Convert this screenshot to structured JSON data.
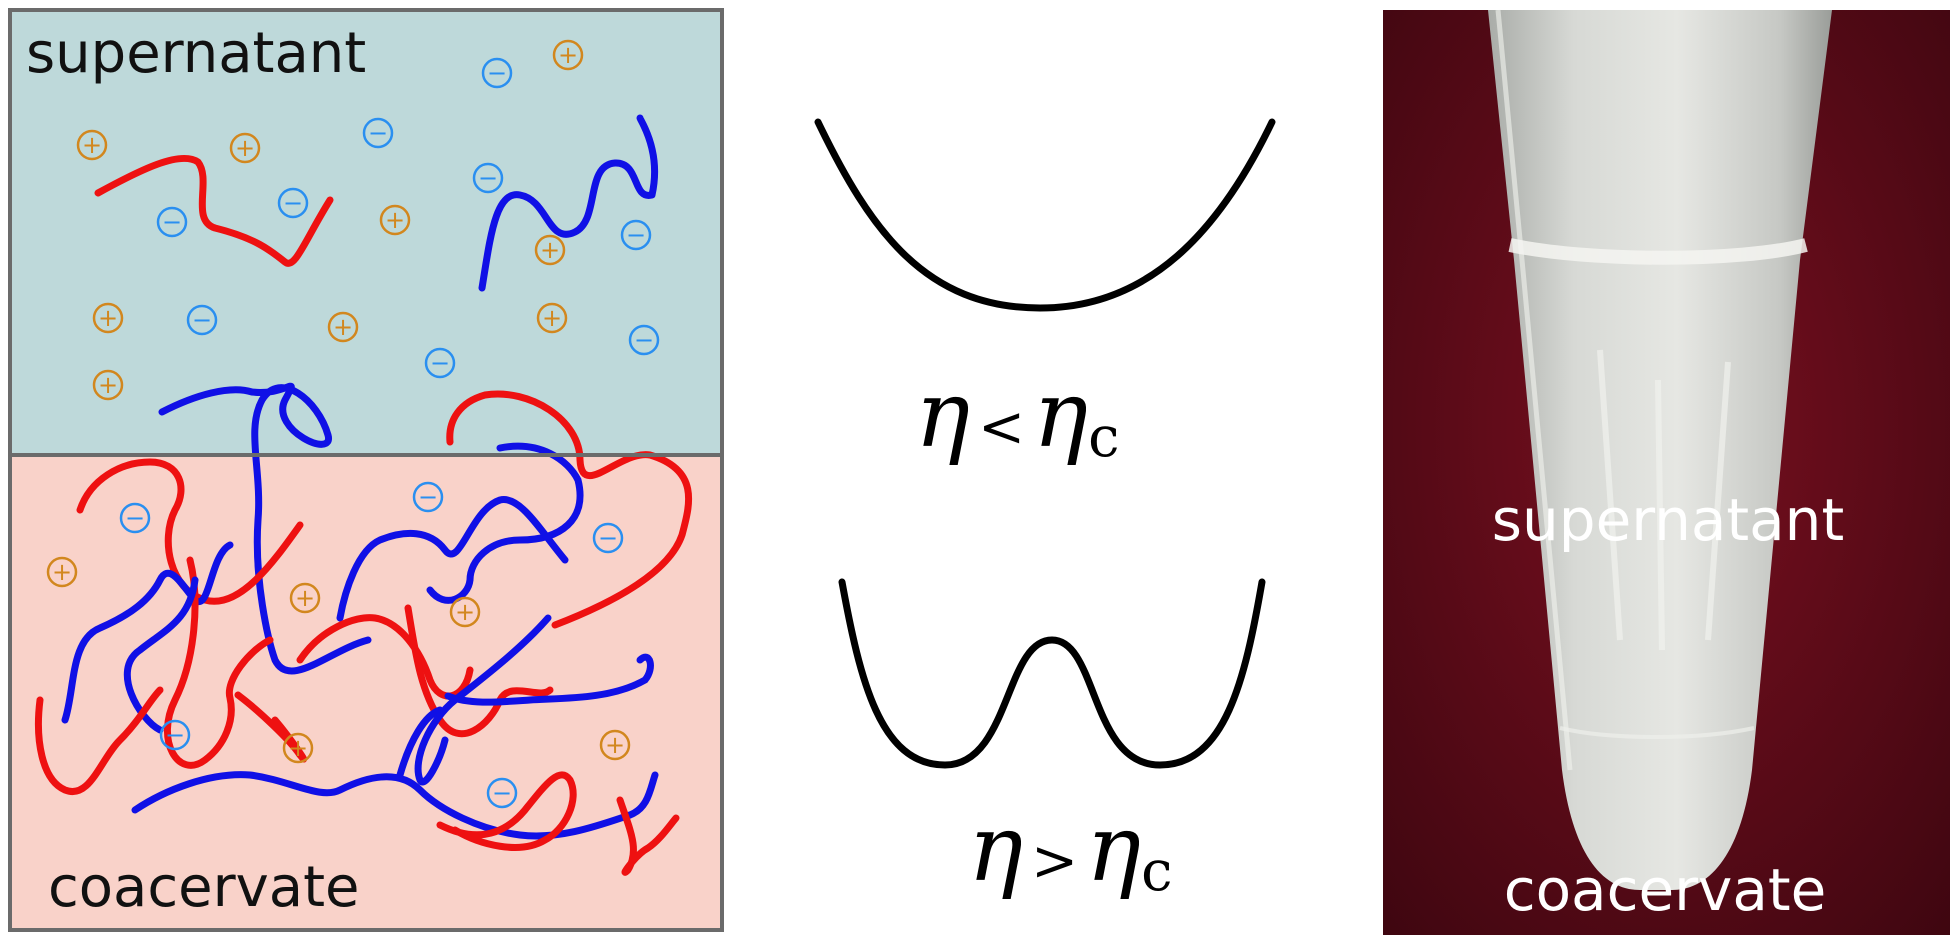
{
  "left_panel": {
    "top_label": "supernatant",
    "bottom_label": "coacervate",
    "colors": {
      "supernatant_fill": "#bed9da",
      "coacervate_fill": "#f9d2c9",
      "border": "#6b6b6b",
      "polycation": "#ee1111",
      "polyanion": "#1010e6",
      "plus_ion": "#d2871e",
      "minus_ion": "#2a8ff0"
    },
    "plus_symbol": "+",
    "minus_symbol": "−"
  },
  "middle_panel": {
    "top_condition": {
      "eta": "η",
      "relation": "<",
      "eta_c": "η",
      "subscript": "c"
    },
    "bottom_condition": {
      "eta": "η",
      "relation": ">",
      "eta_c": "η",
      "subscript": "c"
    }
  },
  "right_panel": {
    "top_label": "supernatant",
    "bottom_label": "coacervate",
    "colors": {
      "background": "#5a0a16",
      "tube": "#d4d6d2",
      "label": "#ffffff"
    }
  }
}
